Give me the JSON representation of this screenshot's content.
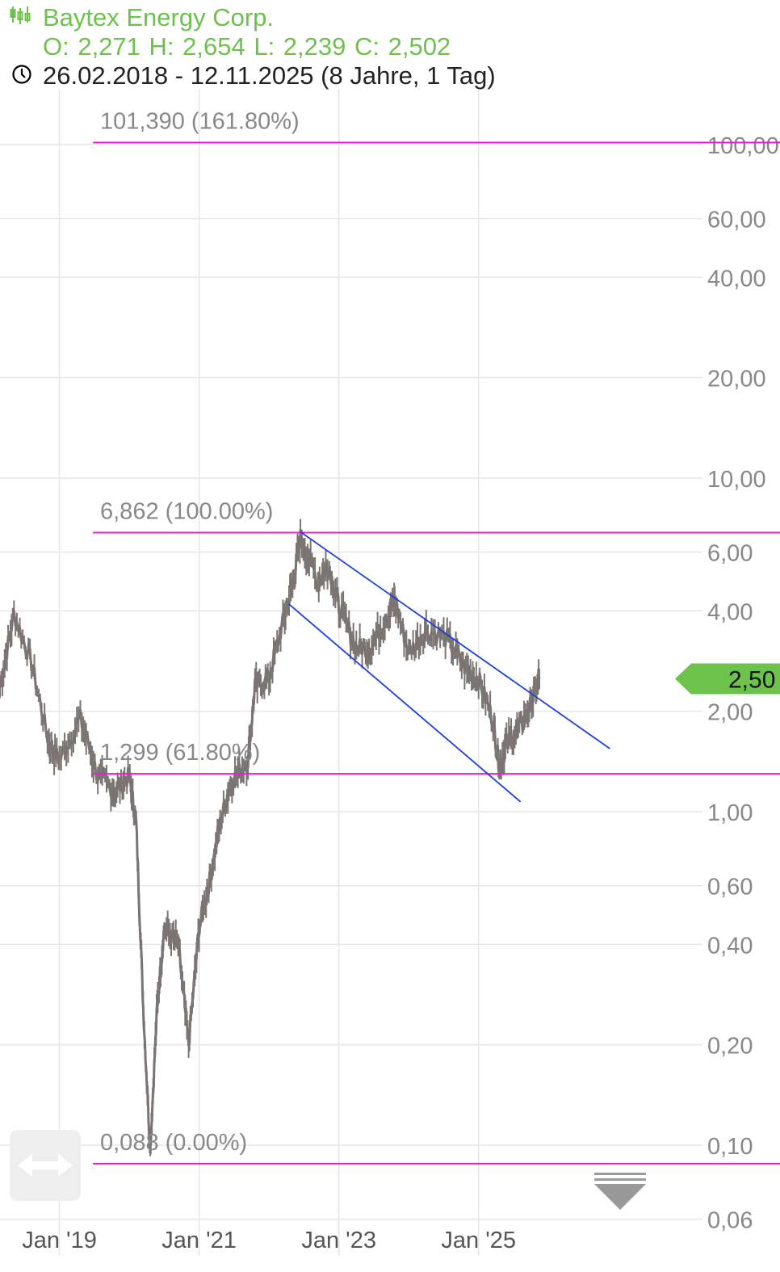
{
  "header": {
    "title": "Baytex Energy Corp.",
    "ohlc": "O: 2,271 H: 2,654 L: 2,239 C: 2,502",
    "range": "26.02.2018 - 12.11.2025  (8 Jahre, 1 Tag)",
    "icon": "candlestick-icon",
    "clock_icon": "clock-icon"
  },
  "colors": {
    "accent": "#6cc24a",
    "price": "#7a7472",
    "fib": "#e81ed2",
    "trend": "#1a3fe0",
    "grid": "#e6e6e6"
  },
  "controls": {
    "pan_icon": "double-arrow-icon",
    "scroll_icon": "scroll-down-icon"
  },
  "chart_data": {
    "type": "line",
    "title": "Baytex Energy Corp.",
    "y_scale": "log",
    "ylim": [
      0.05,
      120
    ],
    "grid": true,
    "y_ticks": [
      "100,00",
      "60,00",
      "40,00",
      "20,00",
      "10,00",
      "6,00",
      "4,00",
      "2,00",
      "1,00",
      "0,60",
      "0,40",
      "0,20",
      "0,10",
      "0,06"
    ],
    "y_tick_values": [
      100,
      60,
      40,
      20,
      10,
      6,
      4,
      2,
      1,
      0.6,
      0.4,
      0.2,
      0.1,
      0.06
    ],
    "x_ticks": [
      "Jan '19",
      "Jan '21",
      "Jan '23",
      "Jan '25"
    ],
    "x_tick_values": [
      2019.0,
      2021.0,
      2023.0,
      2025.0
    ],
    "xlim": [
      2018.15,
      2025.87
    ],
    "series": [
      {
        "x": [
          2018.15,
          2018.35,
          2018.6,
          2018.85,
          2019.0,
          2019.3,
          2019.55,
          2019.8,
          2020.0,
          2020.1,
          2020.2,
          2020.3,
          2020.4,
          2020.5,
          2020.7,
          2020.85,
          2021.0,
          2021.15,
          2021.3,
          2021.45,
          2021.7,
          2021.8,
          2022.0,
          2022.2,
          2022.35,
          2022.45,
          2022.7,
          2022.85,
          2023.0,
          2023.25,
          2023.45,
          2023.7,
          2023.8,
          2024.0,
          2024.25,
          2024.55,
          2024.8,
          2025.0,
          2025.2,
          2025.3,
          2025.4,
          2025.6,
          2025.75,
          2025.87
        ],
        "y": [
          2.37,
          3.92,
          2.8,
          1.6,
          1.43,
          1.9,
          1.28,
          1.15,
          1.28,
          0.92,
          0.26,
          0.098,
          0.26,
          0.45,
          0.4,
          0.2,
          0.45,
          0.62,
          0.92,
          1.22,
          1.43,
          2.37,
          2.5,
          3.7,
          4.9,
          6.66,
          4.9,
          5.5,
          4.15,
          3.1,
          3.1,
          3.9,
          4.3,
          3.0,
          3.5,
          3.3,
          2.7,
          2.5,
          1.9,
          1.36,
          1.6,
          1.8,
          2.1,
          2.502
        ]
      }
    ],
    "last_price_label": "2,50",
    "fibonacci": [
      {
        "value": 101.39,
        "label": "101,390 (161.80%)"
      },
      {
        "value": 6.862,
        "label": "6,862 (100.00%)"
      },
      {
        "value": 1.299,
        "label": "1,299 (61.80%)"
      },
      {
        "value": 0.088,
        "label": "0,088 (0.00%)"
      }
    ],
    "trendlines": [
      {
        "x": [
          2022.45,
          2026.88
        ],
        "y": [
          6.9,
          1.545
        ]
      },
      {
        "x": [
          2022.28,
          2025.6
        ],
        "y": [
          4.2,
          1.07
        ]
      }
    ]
  }
}
